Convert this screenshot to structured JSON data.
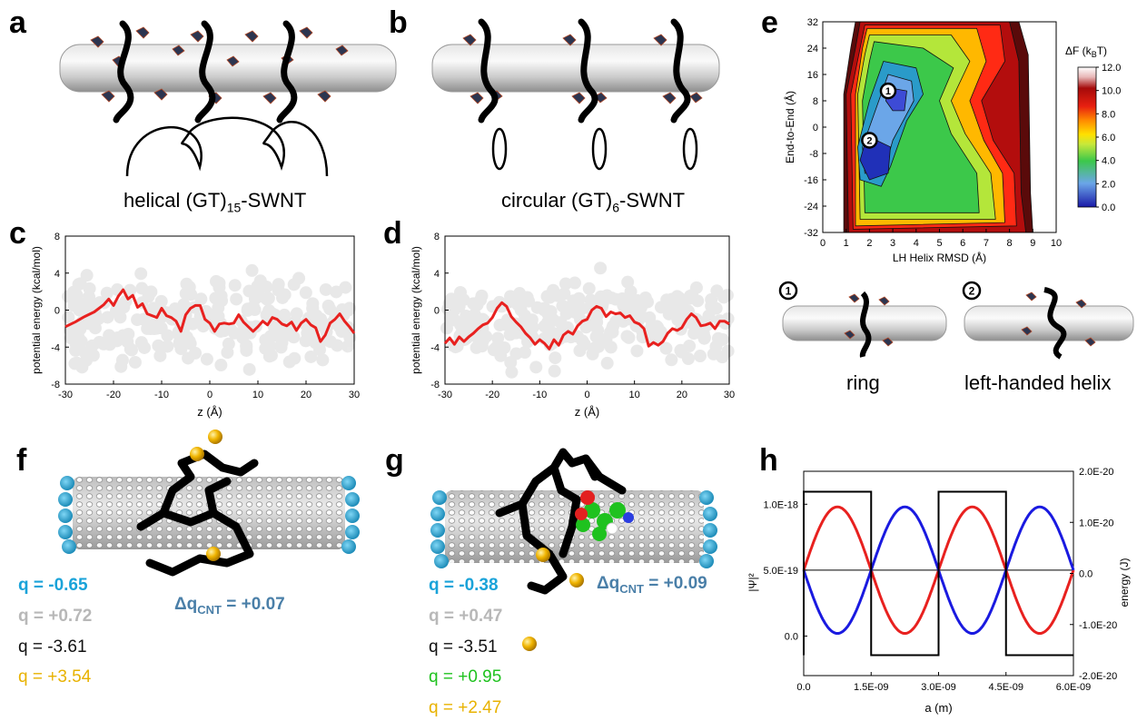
{
  "panels": {
    "a": {
      "letter": "a",
      "caption_pre": "helical (GT)",
      "caption_sub": "15",
      "caption_post": "-SWNT"
    },
    "b": {
      "letter": "b",
      "caption_pre": "circular (GT)",
      "caption_sub": "6",
      "caption_post": "-SWNT"
    },
    "c": {
      "letter": "c"
    },
    "d": {
      "letter": "d"
    },
    "e": {
      "letter": "e",
      "state1_label": "ring",
      "state2_label": "left-handed helix",
      "marker1": "1",
      "marker2": "2"
    },
    "f": {
      "letter": "f",
      "charges": [
        {
          "text": "q = -0.65",
          "color": "#1aa3d9"
        },
        {
          "text": "q = +0.72",
          "color": "#b8b8b8"
        },
        {
          "text": "q = -3.61",
          "color": "#111111"
        },
        {
          "text": "q = +3.54",
          "color": "#e8b200"
        }
      ],
      "delta_pre": "Δq",
      "delta_sub": "CNT",
      "delta_post": " = +0.07",
      "delta_color": "#4a7fa8"
    },
    "g": {
      "letter": "g",
      "charges": [
        {
          "text": "q = -0.38",
          "color": "#1aa3d9"
        },
        {
          "text": "q = +0.47",
          "color": "#b8b8b8"
        },
        {
          "text": "q = -3.51",
          "color": "#111111"
        },
        {
          "text": "q = +0.95",
          "color": "#1fc21f"
        },
        {
          "text": "q = +2.47",
          "color": "#e8b200"
        }
      ],
      "delta_pre": "Δq",
      "delta_sub": "CNT",
      "delta_post": " = +0.09",
      "delta_color": "#4a7fa8"
    },
    "h": {
      "letter": "h"
    }
  },
  "chart_data": [
    {
      "id": "c",
      "type": "line",
      "xlabel": "z (Å)",
      "ylabel": "potential energy (kcal/mol)",
      "xlim": [
        -30,
        30
      ],
      "ylim": [
        -8,
        8
      ],
      "xticks": [
        -30,
        -20,
        -10,
        0,
        10,
        20,
        30
      ],
      "yticks": [
        -8,
        -4,
        0,
        4,
        8
      ],
      "series": [
        {
          "color": "#e8211f",
          "x": [
            -30,
            -28,
            -26,
            -24,
            -22,
            -21,
            -20,
            -19,
            -18,
            -17,
            -16,
            -15,
            -14,
            -13,
            -12,
            -11,
            -10,
            -9,
            -8,
            -7,
            -6,
            -5,
            -4,
            -3,
            -2,
            -1,
            0,
            1,
            2,
            3,
            4,
            5,
            6,
            7,
            8,
            9,
            10,
            11,
            12,
            13,
            14,
            15,
            16,
            17,
            18,
            19,
            20,
            21,
            22,
            23,
            24,
            25,
            26,
            27,
            28,
            29,
            30
          ],
          "y": [
            -1.8,
            -1.3,
            -0.7,
            -0.2,
            0.6,
            1.2,
            0.5,
            1.5,
            2.2,
            1.2,
            1.6,
            0.3,
            0.7,
            -0.4,
            -0.6,
            -0.8,
            0.2,
            -0.6,
            -0.8,
            -1.2,
            -2.3,
            -0.5,
            0.2,
            0.5,
            0.5,
            -1.0,
            -1.4,
            -2.3,
            -1.5,
            -1.4,
            -1.5,
            -1.4,
            -0.5,
            -1.3,
            -1.8,
            -2.3,
            -1.8,
            -1.2,
            -1.6,
            -0.8,
            -1.0,
            -1.5,
            -1.7,
            -1.3,
            -2.2,
            -1.4,
            -1.0,
            -1.6,
            -1.9,
            -3.4,
            -2.7,
            -1.4,
            -1.0,
            -0.4,
            -1.2,
            -1.8,
            -2.5
          ]
        }
      ]
    },
    {
      "id": "d",
      "type": "line",
      "xlabel": "z (Å)",
      "ylabel": "potential energy (kcal/mol)",
      "xlim": [
        -30,
        30
      ],
      "ylim": [
        -8,
        8
      ],
      "xticks": [
        -30,
        -20,
        -10,
        0,
        10,
        20,
        30
      ],
      "yticks": [
        -8,
        -4,
        0,
        4,
        8
      ],
      "series": [
        {
          "color": "#e8211f",
          "x": [
            -30,
            -29,
            -28,
            -27,
            -26,
            -25,
            -24,
            -23,
            -22,
            -21,
            -20,
            -19,
            -18,
            -17,
            -16,
            -15,
            -14,
            -13,
            -12,
            -11,
            -10,
            -9,
            -8,
            -7,
            -6,
            -5,
            -4,
            -3,
            -2,
            -1,
            0,
            1,
            2,
            3,
            4,
            5,
            6,
            7,
            8,
            9,
            10,
            11,
            12,
            13,
            14,
            15,
            16,
            17,
            18,
            19,
            20,
            21,
            22,
            23,
            24,
            25,
            26,
            27,
            28,
            29,
            30
          ],
          "y": [
            -3.6,
            -3.0,
            -3.7,
            -2.9,
            -3.4,
            -2.9,
            -2.5,
            -2.0,
            -1.6,
            -1.4,
            -0.8,
            0.2,
            0.8,
            0.4,
            -0.7,
            -1.3,
            -1.8,
            -2.5,
            -3.0,
            -3.7,
            -3.2,
            -3.6,
            -4.2,
            -3.2,
            -3.8,
            -2.7,
            -2.3,
            -2.6,
            -1.7,
            -1.2,
            -1.0,
            0.0,
            0.4,
            0.2,
            -0.7,
            -0.2,
            -0.4,
            -0.3,
            -0.8,
            -0.6,
            -1.3,
            -1.5,
            -2.0,
            -3.9,
            -3.5,
            -3.8,
            -3.4,
            -2.5,
            -2.0,
            -2.2,
            -1.9,
            -1.0,
            -0.4,
            -0.8,
            -1.7,
            -1.6,
            -1.4,
            -2.0,
            -1.2,
            -1.2,
            -1.5
          ]
        }
      ]
    },
    {
      "id": "e",
      "type": "heatmap",
      "xlabel": "LH Helix RMSD (Å)",
      "ylabel": "End-to-End (Å)",
      "xlim": [
        0,
        10
      ],
      "ylim": [
        -32,
        32
      ],
      "xticks": [
        0,
        1,
        2,
        3,
        4,
        5,
        6,
        7,
        8,
        9,
        10
      ],
      "yticks": [
        -32,
        -24,
        -16,
        -8,
        0,
        8,
        16,
        24,
        32
      ],
      "colorbar_title_pre": "ΔF (k",
      "colorbar_title_sub": "B",
      "colorbar_title_post": "T)",
      "colorbar_ticks": [
        "0.0",
        "2.0",
        "4.0",
        "6.0",
        "8.0",
        "10.0",
        "12.0"
      ],
      "colorbar_range": [
        0,
        12
      ],
      "minima": [
        {
          "label": "1",
          "x": 2.8,
          "y": 11
        },
        {
          "label": "2",
          "x": 2.0,
          "y": -4
        }
      ]
    },
    {
      "id": "h",
      "type": "line",
      "xlabel": "a (m)",
      "ylabel_left": "|Ψ|²",
      "ylabel_right": "energy (J)",
      "xlim": [
        0,
        6e-09
      ],
      "ylim_left": [
        -3e-19,
        1.25e-18
      ],
      "ylim_right": [
        -2e-20,
        2e-20
      ],
      "xticks": [
        "0.0",
        "1.5E-09",
        "3.0E-09",
        "4.5E-09",
        "6.0E-09"
      ],
      "yticks_left": [
        "0.0",
        "5.0E-19",
        "1.0E-18"
      ],
      "yticks_right": [
        "-2.0E-20",
        "-1.0E-20",
        "0.0",
        "1.0E-20",
        "2.0E-20"
      ],
      "series": [
        {
          "color": "#e8211f",
          "kind": "sin",
          "amplitude": 4.8e-19,
          "offset": 5e-19,
          "period": 3e-09,
          "phase": 0
        },
        {
          "color": "#1a1ae0",
          "kind": "sin",
          "amplitude": -4.8e-19,
          "offset": 5e-19,
          "period": 3e-09,
          "phase": 0
        },
        {
          "color": "#000000",
          "kind": "square",
          "high": 1.6e-20,
          "low": -1.6e-20,
          "edges": [
            0.0,
            1.5e-09,
            3e-09,
            4.5e-09,
            6e-09
          ]
        }
      ]
    }
  ]
}
